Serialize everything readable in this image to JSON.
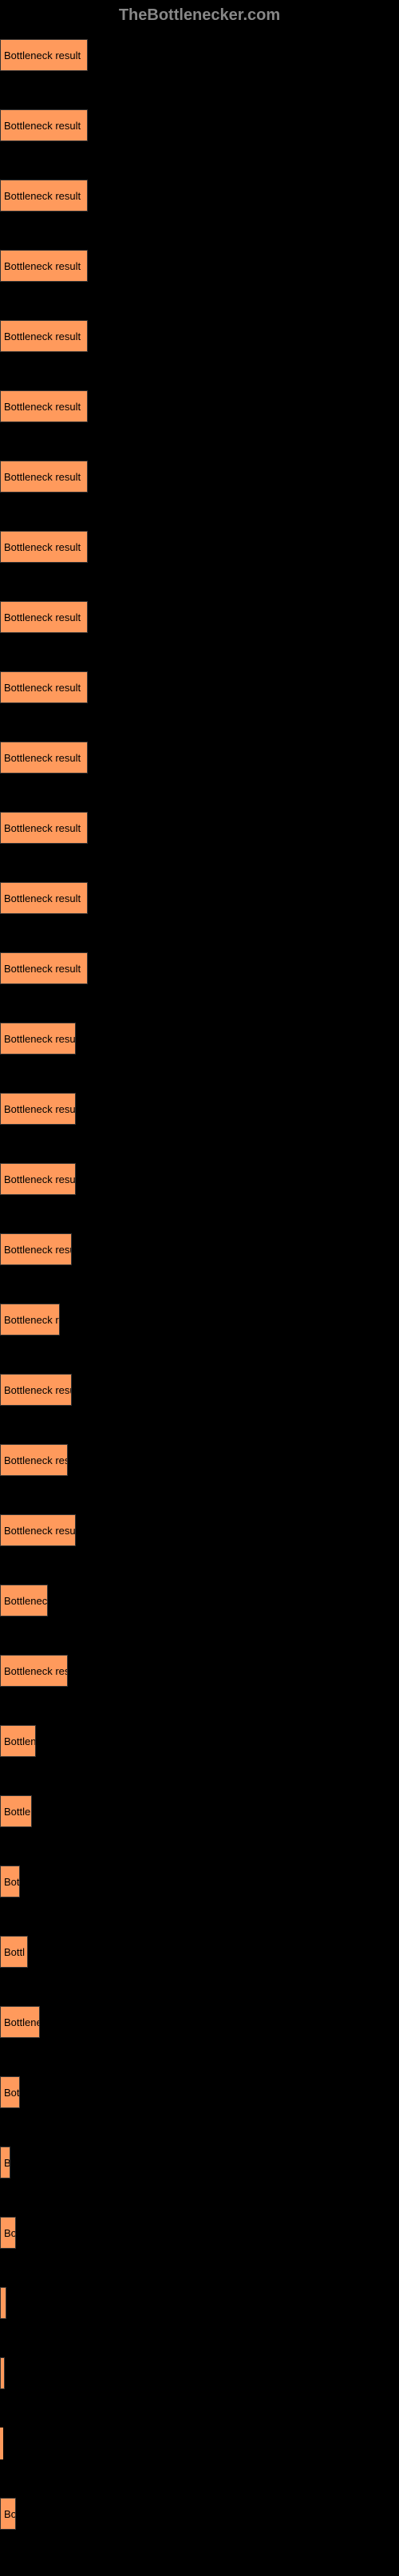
{
  "header": {
    "title": "TheBottlenecker.com"
  },
  "chart": {
    "type": "bar",
    "orientation": "horizontal",
    "background_color": "#000000",
    "bar_color": "#ff9a5c",
    "bar_border_color": "#333333",
    "label_color": "#000000",
    "label_fontsize": 13,
    "max_width_percent": 100,
    "bars": [
      {
        "label": "Bottleneck result",
        "width_percent": 22
      },
      {
        "label": "Bottleneck result",
        "width_percent": 22
      },
      {
        "label": "Bottleneck result",
        "width_percent": 22
      },
      {
        "label": "Bottleneck result",
        "width_percent": 22
      },
      {
        "label": "Bottleneck result",
        "width_percent": 22
      },
      {
        "label": "Bottleneck result",
        "width_percent": 22
      },
      {
        "label": "Bottleneck result",
        "width_percent": 22
      },
      {
        "label": "Bottleneck result",
        "width_percent": 22
      },
      {
        "label": "Bottleneck result",
        "width_percent": 22
      },
      {
        "label": "Bottleneck result",
        "width_percent": 22
      },
      {
        "label": "Bottleneck result",
        "width_percent": 22
      },
      {
        "label": "Bottleneck result",
        "width_percent": 22
      },
      {
        "label": "Bottleneck result",
        "width_percent": 22
      },
      {
        "label": "Bottleneck result",
        "width_percent": 22
      },
      {
        "label": "Bottleneck result",
        "width_percent": 19
      },
      {
        "label": "Bottleneck result",
        "width_percent": 19
      },
      {
        "label": "Bottleneck result",
        "width_percent": 19
      },
      {
        "label": "Bottleneck result",
        "width_percent": 18
      },
      {
        "label": "Bottleneck r",
        "width_percent": 15
      },
      {
        "label": "Bottleneck result",
        "width_percent": 18
      },
      {
        "label": "Bottleneck res",
        "width_percent": 17
      },
      {
        "label": "Bottleneck result",
        "width_percent": 19
      },
      {
        "label": "Bottleneck",
        "width_percent": 12
      },
      {
        "label": "Bottleneck res",
        "width_percent": 17
      },
      {
        "label": "Bottlen",
        "width_percent": 9
      },
      {
        "label": "Bottle",
        "width_percent": 8
      },
      {
        "label": "Bot",
        "width_percent": 5
      },
      {
        "label": "Bottl",
        "width_percent": 7
      },
      {
        "label": "Bottlene",
        "width_percent": 10
      },
      {
        "label": "Bot",
        "width_percent": 5
      },
      {
        "label": "B",
        "width_percent": 2.5
      },
      {
        "label": "Bo",
        "width_percent": 4
      },
      {
        "label": "",
        "width_percent": 1.5
      },
      {
        "label": "",
        "width_percent": 1
      },
      {
        "label": "",
        "width_percent": 0
      },
      {
        "label": "Bo",
        "width_percent": 4
      }
    ]
  }
}
